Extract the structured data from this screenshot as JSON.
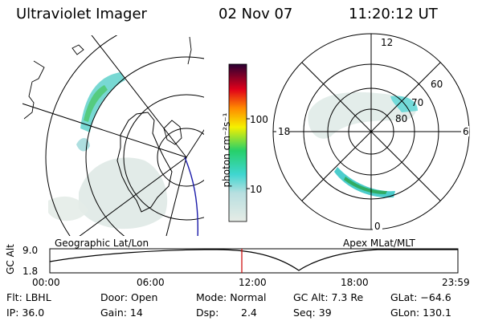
{
  "header": {
    "instrument": "Ultraviolet Imager",
    "date": "02 Nov 07",
    "time": "11:20:12 UT"
  },
  "left_panel": {
    "caption": "Geographic Lat/Lon"
  },
  "right_panel": {
    "caption": "Apex MLat/MLT",
    "mlt_labels": [
      "12",
      "18",
      "6",
      "0"
    ],
    "mlat_labels": [
      "60",
      "70",
      "80"
    ]
  },
  "colorbar": {
    "unit_label": "photon cm⁻²s⁻¹",
    "tick_labels": [
      "100",
      "10"
    ],
    "scale": "log",
    "colors": [
      "#e6ece6",
      "#3fd6d0",
      "#26d06a",
      "#f5f000",
      "#ff8a00",
      "#e0001a",
      "#2a0033"
    ]
  },
  "timeline": {
    "ylabel": "GC Alt",
    "y_ticks": [
      "9.0",
      "1.8"
    ],
    "x_ticks": [
      "00:00",
      "06:00",
      "12:00",
      "18:00",
      "23:59"
    ],
    "marker_color": "#cc0000",
    "current_time": "11:20"
  },
  "info": {
    "flt": "Flt: LBHL",
    "ip": "IP: 36.0",
    "door": "Door: Open",
    "gain": "Gain: 14",
    "mode": "Mode: Normal",
    "dsp_label": "Dsp:",
    "dsp_value": "2.4",
    "gc_alt": "GC Alt: 7.3 Re",
    "seq": "Seq: 39",
    "glat": "GLat: −64.6",
    "glon": "GLon: 130.1"
  }
}
